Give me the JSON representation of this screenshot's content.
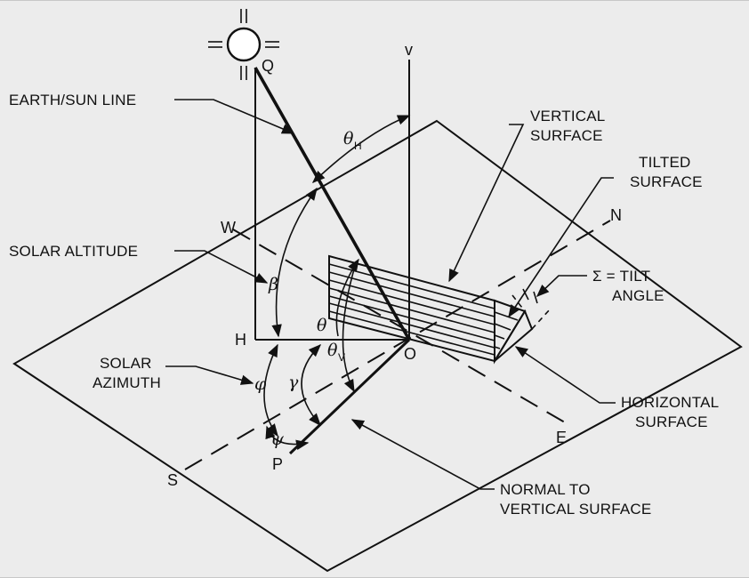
{
  "labels": {
    "earth_sun_line": "EARTH/SUN LINE",
    "vertical_surface": [
      "VERTICAL",
      "SURFACE"
    ],
    "tilted_surface": [
      "TILTED",
      "SURFACE"
    ],
    "solar_altitude": "SOLAR ALTITUDE",
    "tilt_angle": [
      "Σ = TILT",
      "ANGLE"
    ],
    "solar_azimuth": [
      "SOLAR",
      "AZIMUTH"
    ],
    "horizontal_surface": [
      "HORIZONTAL",
      "SURFACE"
    ],
    "normal_to_vertical": [
      "NORMAL TO",
      "VERTICAL SURFACE"
    ]
  },
  "points": {
    "Q": "Q",
    "v": "v",
    "W": "W",
    "N": "N",
    "H": "H",
    "O": "O",
    "E": "E",
    "S": "S",
    "P": "P"
  },
  "angles": {
    "theta_h": "θ",
    "theta_h_sub": "H",
    "beta": "β",
    "theta": "θ",
    "theta_v": "θ",
    "theta_v_sub": "V",
    "phi": "φ",
    "gamma": "γ",
    "psi": "ψ"
  }
}
